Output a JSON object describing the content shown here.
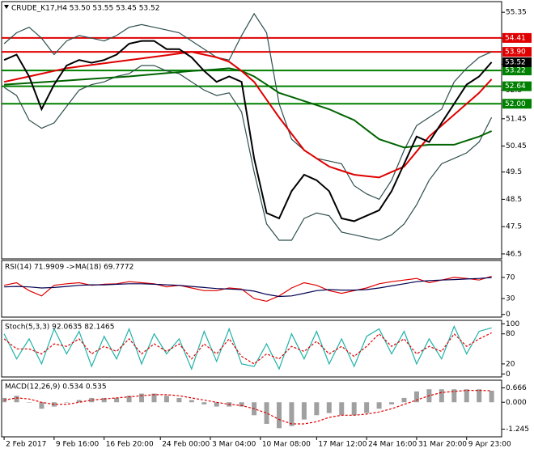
{
  "chart_data": [
    {
      "type": "line",
      "title": "CRUDE_K17,H4  53.50 53.55 53.45 53.52",
      "x": [
        0,
        1,
        2,
        3,
        4,
        5,
        6,
        7,
        8,
        9,
        10,
        11,
        12,
        13,
        14,
        15,
        16,
        17,
        18,
        19,
        20,
        21,
        22,
        23,
        24,
        25,
        26,
        27,
        28,
        29,
        30,
        31,
        32,
        33,
        34,
        35,
        36,
        37,
        38,
        39
      ],
      "xlim": [
        -0.2,
        39.8
      ],
      "ylim": [
        46.32,
        55.74
      ],
      "yticks": [
        55.35,
        {
          "value": 54.4,
          "label": "54.40"
        },
        53.45,
        52.5,
        51.45,
        50.45,
        49.5,
        48.5,
        47.5,
        46.5
      ],
      "series": [
        {
          "name": "Upper band",
          "color": "#2f4f4f",
          "values": [
            54.2,
            54.6,
            54.8,
            54.4,
            53.8,
            54.3,
            54.5,
            54.4,
            54.3,
            54.5,
            54.8,
            54.9,
            54.8,
            54.7,
            54.6,
            54.3,
            54.0,
            53.7,
            53.6,
            54.5,
            55.3,
            54.6,
            52.0,
            50.7,
            50.3,
            50.0,
            49.9,
            49.8,
            49.0,
            48.7,
            48.5,
            49.2,
            50.3,
            51.2,
            51.5,
            51.8,
            52.8,
            53.3,
            53.7,
            53.9
          ]
        },
        {
          "name": "Lower band",
          "color": "#2f4f4f",
          "values": [
            52.6,
            52.3,
            51.4,
            51.1,
            51.3,
            51.9,
            52.5,
            52.7,
            52.8,
            53.0,
            53.1,
            53.4,
            53.4,
            53.2,
            53.1,
            52.8,
            52.5,
            52.3,
            52.4,
            51.7,
            49.5,
            47.6,
            47.0,
            47.0,
            47.8,
            48.0,
            47.9,
            47.3,
            47.2,
            47.1,
            47.0,
            47.2,
            47.6,
            48.3,
            49.2,
            49.8,
            50.0,
            50.2,
            50.6,
            51.5
          ]
        },
        {
          "name": "Slow MA",
          "color": "#006400",
          "values": [
            52.7,
            52.73,
            52.76,
            52.79,
            52.82,
            52.85,
            52.88,
            52.91,
            52.94,
            52.97,
            53.0,
            53.04,
            53.08,
            53.12,
            53.16,
            53.2,
            53.23,
            53.26,
            53.3,
            53.2,
            53.0,
            52.7,
            52.4,
            52.25,
            52.1,
            51.95,
            51.8,
            51.6,
            51.4,
            51.05,
            50.7,
            50.55,
            50.4,
            50.45,
            50.5,
            50.5,
            50.5,
            50.65,
            50.8,
            51.0
          ]
        },
        {
          "name": "Fast MA",
          "color": "#e00000",
          "values": [
            52.8,
            52.9,
            53.0,
            53.1,
            53.2,
            53.3,
            53.36,
            53.42,
            53.48,
            53.54,
            53.6,
            53.66,
            53.72,
            53.78,
            53.84,
            53.9,
            53.8,
            53.7,
            53.54,
            53.2,
            52.8,
            52.15,
            51.5,
            50.9,
            50.3,
            50.0,
            49.7,
            49.55,
            49.4,
            49.35,
            49.3,
            49.5,
            49.7,
            50.25,
            50.8,
            51.2,
            51.6,
            52.0,
            52.4,
            52.9
          ]
        },
        {
          "name": "Close",
          "color": "#000000",
          "values": [
            53.6,
            53.8,
            53.0,
            51.8,
            52.7,
            53.4,
            53.6,
            53.5,
            53.6,
            53.8,
            54.2,
            54.3,
            54.3,
            54.0,
            54.0,
            53.7,
            53.2,
            52.8,
            53.0,
            52.8,
            50.0,
            48.0,
            47.8,
            48.8,
            49.4,
            49.2,
            48.8,
            47.8,
            47.7,
            47.9,
            48.1,
            48.8,
            49.8,
            50.8,
            50.6,
            51.3,
            52.0,
            52.7,
            53.0,
            53.52
          ]
        }
      ],
      "levels": [
        {
          "value": 54.41,
          "label": "54.41",
          "color": "#e00000"
        },
        {
          "value": 53.9,
          "label": "53.90",
          "color": "#e00000"
        },
        {
          "value": 53.22,
          "label": "53.22",
          "color": "#008000"
        },
        {
          "value": 52.64,
          "label": "52.64",
          "color": "#008000"
        },
        {
          "value": 52.0,
          "label": "52.00",
          "color": "#008000"
        }
      ],
      "last_price": {
        "value": 53.52,
        "label": "53.52",
        "color": "#000000"
      }
    },
    {
      "type": "line",
      "title": "RSI(14) 71.9909 ->MA(18) 69.7772",
      "x": [
        0,
        1,
        2,
        3,
        4,
        5,
        6,
        7,
        8,
        9,
        10,
        11,
        12,
        13,
        14,
        15,
        16,
        17,
        18,
        19,
        20,
        21,
        22,
        23,
        24,
        25,
        26,
        27,
        28,
        29,
        30,
        31,
        32,
        33,
        34,
        35,
        36,
        37,
        38,
        39
      ],
      "xlim": [
        -0.2,
        39.8
      ],
      "ylim": [
        -5,
        102
      ],
      "yticks": [
        70,
        30,
        0
      ],
      "series": [
        {
          "name": "RSI",
          "color": "#e00000",
          "values": [
            55,
            60,
            45,
            35,
            55,
            58,
            60,
            55,
            57,
            58,
            62,
            60,
            58,
            52,
            55,
            50,
            45,
            45,
            50,
            48,
            30,
            25,
            35,
            50,
            60,
            55,
            45,
            40,
            45,
            50,
            58,
            62,
            65,
            68,
            60,
            65,
            70,
            68,
            65,
            71.99
          ]
        },
        {
          "name": "MA",
          "color": "#000050",
          "values": [
            52,
            53,
            52,
            50,
            51,
            53,
            55,
            56,
            56,
            57,
            58,
            58,
            57,
            56,
            55,
            53,
            51,
            49,
            48,
            47,
            44,
            38,
            34,
            35,
            40,
            45,
            47,
            46,
            46,
            47,
            50,
            54,
            58,
            62,
            64,
            65,
            66,
            67,
            68,
            69.78
          ]
        }
      ]
    },
    {
      "type": "line",
      "title": "Stoch(5,3,3) 92.0635 82.1465",
      "x": [
        0,
        1,
        2,
        3,
        4,
        5,
        6,
        7,
        8,
        9,
        10,
        11,
        12,
        13,
        14,
        15,
        16,
        17,
        18,
        19,
        20,
        21,
        22,
        23,
        24,
        25,
        26,
        27,
        28,
        29,
        30,
        31,
        32,
        33,
        34,
        35,
        36,
        37,
        38,
        39
      ],
      "xlim": [
        -0.2,
        39.8
      ],
      "ylim": [
        -6,
        107
      ],
      "yticks": [
        100,
        80,
        20,
        0
      ],
      "series": [
        {
          "name": "Main",
          "color": "#20b2aa",
          "values": [
            80,
            30,
            70,
            20,
            90,
            40,
            85,
            15,
            75,
            30,
            90,
            20,
            80,
            40,
            70,
            10,
            85,
            25,
            90,
            20,
            15,
            60,
            10,
            80,
            30,
            85,
            20,
            70,
            15,
            75,
            90,
            40,
            85,
            20,
            70,
            30,
            95,
            40,
            85,
            92.06
          ]
        },
        {
          "name": "Signal",
          "color": "#e00000",
          "dash": true,
          "values": [
            70,
            50,
            50,
            40,
            60,
            55,
            70,
            40,
            55,
            45,
            70,
            40,
            60,
            45,
            60,
            30,
            60,
            40,
            70,
            35,
            20,
            40,
            30,
            55,
            45,
            65,
            40,
            55,
            35,
            55,
            80,
            55,
            70,
            40,
            55,
            45,
            80,
            55,
            70,
            82.15
          ]
        }
      ]
    },
    {
      "type": "line",
      "title": "MACD(12,26,9) 0.534 0.535",
      "x": [
        0,
        1,
        2,
        3,
        4,
        5,
        6,
        7,
        8,
        9,
        10,
        11,
        12,
        13,
        14,
        15,
        16,
        17,
        18,
        19,
        20,
        21,
        22,
        23,
        24,
        25,
        26,
        27,
        28,
        29,
        30,
        31,
        32,
        33,
        34,
        35,
        36,
        37,
        38,
        39
      ],
      "xlim": [
        -0.2,
        39.8
      ],
      "ylim": [
        -1.6,
        1.02
      ],
      "yticks": [
        {
          "value": 0.666,
          "label": "0.666"
        },
        {
          "value": 0,
          "label": "0.000"
        },
        {
          "value": -1.245,
          "label": "-1.245"
        }
      ],
      "xticks": [
        {
          "value": 0,
          "label": "2 Feb 2017"
        },
        {
          "value": 4,
          "label": "9 Feb 16:00"
        },
        {
          "value": 8,
          "label": "16 Feb 20:00"
        },
        {
          "value": 12.5,
          "label": "24 Feb 00:00"
        },
        {
          "value": 16.5,
          "label": "3 Mar 04:00"
        },
        {
          "value": 20.5,
          "label": "10 Mar 08:00"
        },
        {
          "value": 25,
          "label": "17 Mar 12:00"
        },
        {
          "value": 29,
          "label": "24 Mar 16:00"
        },
        {
          "value": 33,
          "label": "31 Mar 20:00"
        },
        {
          "value": 37,
          "label": "9 Apr 23:00"
        }
      ],
      "series": [
        {
          "name": "MACD",
          "type": "bar",
          "color": "#a0a0a0",
          "values": [
            0.2,
            0.3,
            0.0,
            -0.3,
            -0.2,
            0.0,
            0.1,
            0.2,
            0.2,
            0.2,
            0.3,
            0.4,
            0.4,
            0.3,
            0.2,
            0.1,
            -0.1,
            -0.2,
            -0.2,
            -0.2,
            -0.6,
            -1.0,
            -1.2,
            -1.1,
            -0.8,
            -0.6,
            -0.5,
            -0.6,
            -0.6,
            -0.5,
            -0.3,
            -0.1,
            0.2,
            0.5,
            0.6,
            0.6,
            0.6,
            0.6,
            0.6,
            0.534
          ]
        },
        {
          "name": "Signal",
          "color": "#e00000",
          "dash": true,
          "values": [
            0.1,
            0.2,
            0.15,
            0.0,
            -0.1,
            -0.1,
            0.0,
            0.1,
            0.15,
            0.2,
            0.25,
            0.3,
            0.35,
            0.35,
            0.3,
            0.2,
            0.1,
            0.0,
            -0.1,
            -0.15,
            -0.3,
            -0.5,
            -0.8,
            -1.0,
            -1.0,
            -0.9,
            -0.7,
            -0.6,
            -0.6,
            -0.55,
            -0.45,
            -0.3,
            -0.1,
            0.1,
            0.3,
            0.45,
            0.5,
            0.55,
            0.55,
            0.535
          ]
        }
      ]
    }
  ]
}
